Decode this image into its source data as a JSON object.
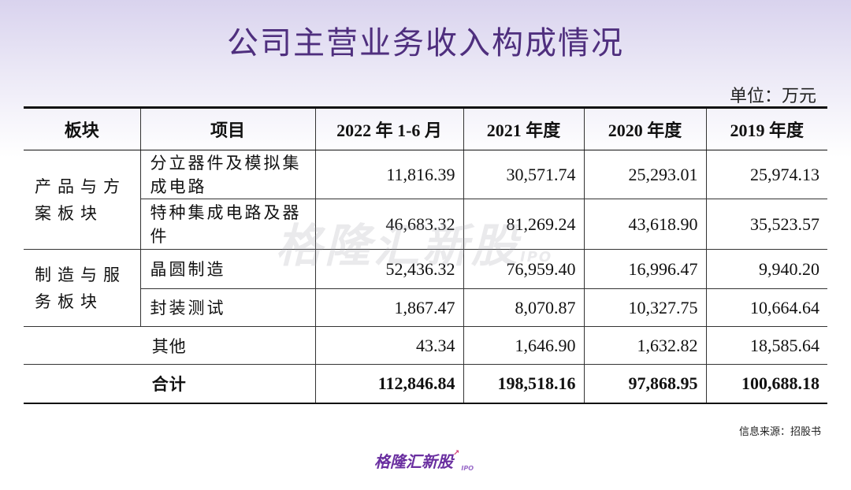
{
  "title": "公司主营业务收入构成情况",
  "unit": "单位：万元",
  "table": {
    "headers": [
      "板块",
      "项目",
      "2022 年 1-6 月",
      "2021 年度",
      "2020 年度",
      "2019 年度"
    ],
    "segments": [
      {
        "name": "产品与方案板块",
        "rows": [
          {
            "item": "分立器件及模拟集成电路",
            "values": [
              "11,816.39",
              "30,571.74",
              "25,293.01",
              "25,974.13"
            ]
          },
          {
            "item": "特种集成电路及器件",
            "values": [
              "46,683.32",
              "81,269.24",
              "43,618.90",
              "35,523.57"
            ]
          }
        ]
      },
      {
        "name": "制造与服务板块",
        "rows": [
          {
            "item": "晶圆制造",
            "values": [
              "52,436.32",
              "76,959.40",
              "16,996.47",
              "9,940.20"
            ]
          },
          {
            "item": "封装测试",
            "values": [
              "1,867.47",
              "8,070.87",
              "10,327.75",
              "10,664.64"
            ]
          }
        ]
      }
    ],
    "other": {
      "item": "其他",
      "values": [
        "43.34",
        "1,646.90",
        "1,632.82",
        "18,585.64"
      ]
    },
    "total": {
      "item": "合计",
      "values": [
        "112,846.84",
        "198,518.16",
        "97,868.95",
        "100,688.18"
      ]
    }
  },
  "source": "信息来源：招股书",
  "watermark": {
    "text": "格隆汇新股",
    "ipo": "IPO"
  },
  "logo": {
    "text": "格隆汇新股",
    "ipo": "IPO"
  }
}
